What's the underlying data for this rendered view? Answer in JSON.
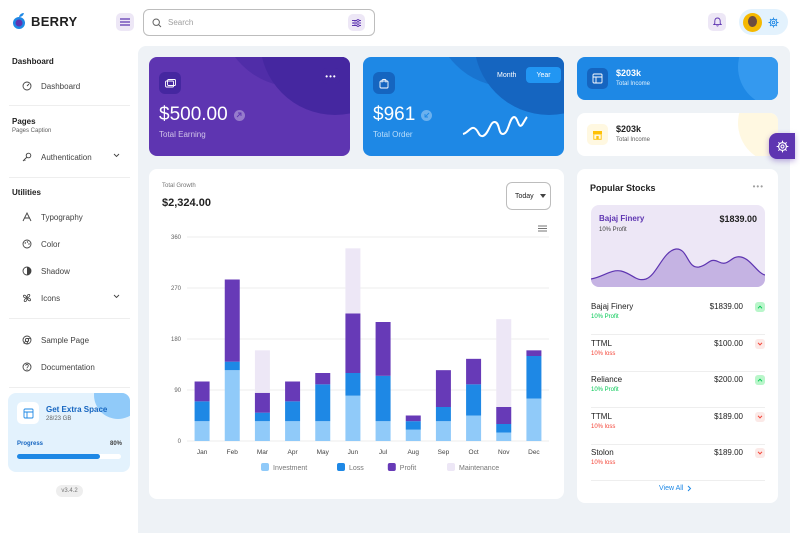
{
  "app": {
    "brand": "BERRY"
  },
  "header": {
    "search_placeholder": "Search"
  },
  "sidebar": {
    "groups": [
      {
        "caption": "Dashboard",
        "sub": "",
        "items": [
          {
            "label": "Dashboard",
            "icon": "dashboard-icon"
          }
        ]
      },
      {
        "caption": "Pages",
        "sub": "Pages Caption",
        "items": [
          {
            "label": "Authentication",
            "icon": "key-icon",
            "has_children": true
          }
        ]
      },
      {
        "caption": "Utilities",
        "sub": "",
        "items": [
          {
            "label": "Typography",
            "icon": "typography-icon"
          },
          {
            "label": "Color",
            "icon": "palette-icon"
          },
          {
            "label": "Shadow",
            "icon": "shadow-icon"
          },
          {
            "label": "Icons",
            "icon": "windmill-icon",
            "has_children": true
          }
        ]
      },
      {
        "caption": "",
        "sub": "",
        "items": [
          {
            "label": "Sample Page",
            "icon": "brand-chrome-icon"
          },
          {
            "label": "Documentation",
            "icon": "help-icon"
          }
        ]
      }
    ],
    "space_card": {
      "title": "Get Extra Space",
      "subtitle": "28/23 GB",
      "progress_label": "Progress",
      "progress_value": "80%",
      "progress_fraction": 0.8
    },
    "version": "v3.4.2"
  },
  "cards": {
    "earning": {
      "value": "$500.00",
      "label": "Total Earning"
    },
    "order": {
      "value": "$961",
      "label": "Total Order",
      "toggle": [
        "Month",
        "Year"
      ],
      "active_toggle": "Year"
    },
    "income_dark": {
      "value": "$203k",
      "label": "Total Income"
    },
    "income_light": {
      "value": "$203k",
      "label": "Total Income"
    }
  },
  "growth": {
    "subtitle": "Total Growth",
    "value": "$2,324.00",
    "period": "Today",
    "legend_positions": "bottom-center"
  },
  "chart_data": {
    "type": "bar",
    "stacked": true,
    "categories": [
      "Jan",
      "Feb",
      "Mar",
      "Apr",
      "May",
      "Jun",
      "Jul",
      "Aug",
      "Sep",
      "Oct",
      "Nov",
      "Dec"
    ],
    "y_ticks": [
      0,
      90,
      180,
      270,
      360
    ],
    "ylim": [
      0,
      360
    ],
    "grid": true,
    "legend": "bottom",
    "series": [
      {
        "name": "Investment",
        "color": "#90caf9",
        "values": [
          35,
          125,
          35,
          35,
          35,
          80,
          35,
          20,
          35,
          45,
          15,
          75
        ]
      },
      {
        "name": "Loss",
        "color": "#1e88e5",
        "values": [
          35,
          15,
          15,
          35,
          65,
          40,
          80,
          15,
          25,
          55,
          15,
          75
        ]
      },
      {
        "name": "Profit",
        "color": "#673ab7",
        "values": [
          35,
          145,
          35,
          35,
          20,
          105,
          95,
          10,
          65,
          45,
          30,
          10
        ]
      },
      {
        "name": "Maintenance",
        "color": "#ede7f6",
        "values": [
          0,
          0,
          75,
          0,
          0,
          115,
          0,
          0,
          0,
          0,
          155,
          0
        ]
      }
    ]
  },
  "stocks": {
    "title": "Popular Stocks",
    "featured": {
      "name": "Bajaj Finery",
      "value": "$1839.00",
      "change": "10% Profit"
    },
    "rows": [
      {
        "name": "Bajaj Finery",
        "value": "$1839.00",
        "change": "10% Profit",
        "trend": "up"
      },
      {
        "name": "TTML",
        "value": "$100.00",
        "change": "10% loss",
        "trend": "down"
      },
      {
        "name": "Reliance",
        "value": "$200.00",
        "change": "10% Profit",
        "trend": "up"
      },
      {
        "name": "TTML",
        "value": "$189.00",
        "change": "10% loss",
        "trend": "down"
      },
      {
        "name": "Stolon",
        "value": "$189.00",
        "change": "10% loss",
        "trend": "down"
      }
    ],
    "view_all": "View All"
  },
  "colors": {
    "primary": "#5e35b1",
    "secondary": "#1e88e5",
    "success": "#00c853",
    "error": "#f44336"
  }
}
